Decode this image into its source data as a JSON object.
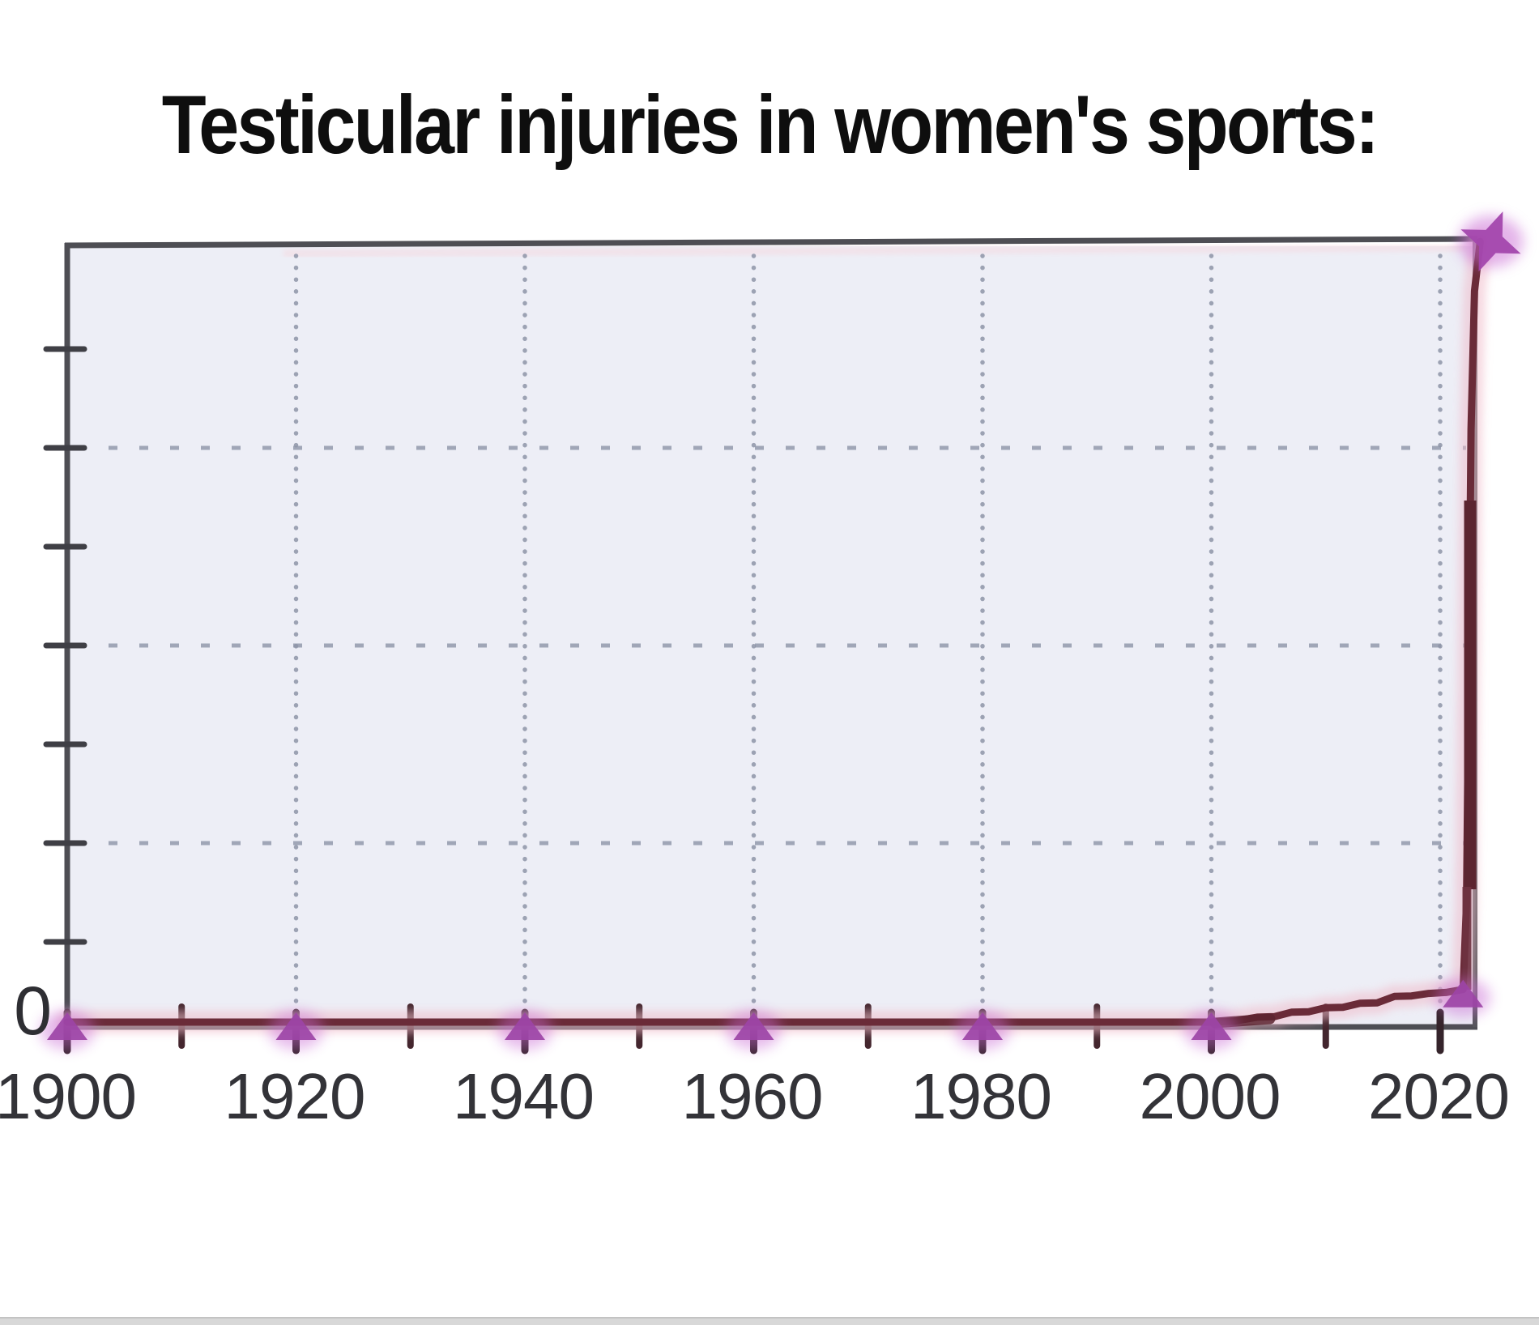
{
  "chart_data": {
    "type": "line",
    "title": "Testicular injuries in women's sports:",
    "xlabel": "",
    "ylabel": "",
    "xlim": [
      1900,
      2023.5
    ],
    "ylim": [
      0,
      8
    ],
    "x_tick_years": [
      1900,
      1920,
      1940,
      1960,
      1980,
      2000,
      2020
    ],
    "x_tick_labels": [
      "1900",
      "1920",
      "1940",
      "1960",
      "1980",
      "2000",
      "2020"
    ],
    "x_minor_tick_years": [
      1910,
      1930,
      1950,
      1970,
      1990,
      2010
    ],
    "y_tick_labels": [
      "0"
    ],
    "y_tick_count": 7,
    "grid": "dotted",
    "legend": "none",
    "series": [
      {
        "name": "testicular-injuries",
        "points": [
          [
            1900,
            0
          ],
          [
            1920,
            0
          ],
          [
            1940,
            0
          ],
          [
            1960,
            0
          ],
          [
            1980,
            0
          ],
          [
            2000,
            0
          ],
          [
            2002,
            0.01
          ],
          [
            2004,
            0.05
          ],
          [
            2005.5,
            0.055
          ],
          [
            2007,
            0.1
          ],
          [
            2008.5,
            0.105
          ],
          [
            2010,
            0.145
          ],
          [
            2011.5,
            0.15
          ],
          [
            2013,
            0.19
          ],
          [
            2014.5,
            0.195
          ],
          [
            2016,
            0.26
          ],
          [
            2017.5,
            0.265
          ],
          [
            2019,
            0.29
          ],
          [
            2020.5,
            0.3
          ],
          [
            2022,
            0.33
          ],
          [
            2022.3,
            1.2
          ],
          [
            2022.5,
            3.5
          ],
          [
            2022.7,
            6.0
          ],
          [
            2023,
            7.4
          ],
          [
            2023.5,
            7.9
          ]
        ]
      }
    ],
    "marker_points": [
      [
        1900,
        0
      ],
      [
        1920,
        0
      ],
      [
        1940,
        0
      ],
      [
        1960,
        0
      ],
      [
        1980,
        0
      ],
      [
        2000,
        0
      ],
      [
        2022,
        0.33
      ]
    ],
    "peak_marker": [
      2023.5,
      7.9
    ],
    "annotation": "Line flat at zero from 1900 through 2000, then spikes vertically off the top of the chart at the far right edge",
    "colors": {
      "line": "#6a2b38",
      "line_dark": "#5c2530",
      "glow": "#f0bcca",
      "marker": "#9c44a6",
      "marker_glow": "#c969d4",
      "plot_bg": "#edeef6",
      "spine": "#4e4e54",
      "grid_dot": "#8e95a8",
      "tick": "#3f3f45",
      "x_tick": "#35242b",
      "title_color": "#0e0e0e",
      "label_color": "#333338"
    }
  }
}
